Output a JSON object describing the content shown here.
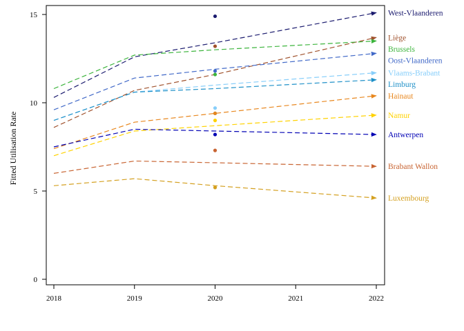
{
  "chart_data": {
    "type": "line",
    "title": "",
    "xlabel": "",
    "ylabel": "Fitted Utilisation Rate",
    "xlim": [
      2018,
      2022
    ],
    "ylim": [
      0,
      15.5
    ],
    "x_ticks": [
      2018,
      2019,
      2020,
      2021,
      2022
    ],
    "y_ticks": [
      0,
      5,
      10,
      15
    ],
    "x": [
      2018,
      2019,
      2020,
      2022
    ],
    "grid": false,
    "legend": "end-of-line labels on the right",
    "series": [
      {
        "name": "West-Vlaanderen",
        "color": "#1a1a6e",
        "values": [
          10.3,
          12.6,
          13.4,
          15.1
        ],
        "observed_2020": 14.9
      },
      {
        "name": "Liège",
        "color": "#a0522d",
        "values": [
          8.6,
          10.7,
          11.6,
          13.7
        ],
        "observed_2020": 13.2
      },
      {
        "name": "Brussels",
        "color": "#3cb43c",
        "values": [
          10.8,
          12.7,
          13.0,
          13.5
        ],
        "observed_2020": 11.6
      },
      {
        "name": "Oost-Vlaanderen",
        "color": "#4169c8",
        "values": [
          9.6,
          11.4,
          11.9,
          12.8
        ],
        "observed_2020": 11.8
      },
      {
        "name": "Vlaams-Brabant",
        "color": "#87cefa",
        "values": [
          9.0,
          10.6,
          11.0,
          11.7
        ],
        "observed_2020": 9.7
      },
      {
        "name": "Limburg",
        "color": "#1e90c8",
        "values": [
          9.0,
          10.6,
          10.8,
          11.3
        ],
        "observed_2020": 9.4
      },
      {
        "name": "Hainaut",
        "color": "#e8871e",
        "values": [
          7.4,
          8.9,
          9.4,
          10.4
        ],
        "observed_2020": 9.4
      },
      {
        "name": "Namur",
        "color": "#ffd200",
        "values": [
          7.0,
          8.4,
          8.7,
          9.3
        ],
        "observed_2020": 9.0
      },
      {
        "name": "Antwerpen",
        "color": "#0000b4",
        "values": [
          7.5,
          8.5,
          8.4,
          8.2
        ],
        "observed_2020": 8.2
      },
      {
        "name": "Brabant Wallon",
        "color": "#c86432",
        "values": [
          6.0,
          6.7,
          6.6,
          6.4
        ],
        "observed_2020": 7.3
      },
      {
        "name": "Luxembourg",
        "color": "#d4a020",
        "values": [
          5.3,
          5.7,
          5.3,
          4.6
        ],
        "observed_2020": 5.2
      }
    ]
  }
}
